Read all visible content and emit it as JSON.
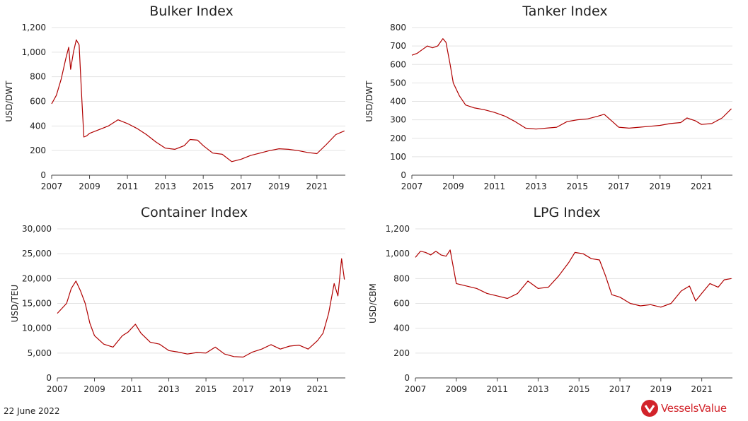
{
  "footer": {
    "date": "22 June 2022"
  },
  "brand": {
    "name": "VesselsValue",
    "color": "#d2232a"
  },
  "line_color": "#b00000",
  "chart_data": [
    {
      "type": "line",
      "title": "Bulker Index",
      "ylabel": "USD/DWT",
      "ylim": [
        0,
        1200
      ],
      "yticks": [
        0,
        200,
        400,
        600,
        800,
        1000,
        1200
      ],
      "ytick_labels": [
        "0",
        "200",
        "400",
        "600",
        "800",
        "1,000",
        "1,200"
      ],
      "xlim": [
        2007,
        2022.5
      ],
      "xticks": [
        2007,
        2009,
        2011,
        2013,
        2015,
        2017,
        2019,
        2021
      ],
      "xtick_labels": [
        "2007",
        "2009",
        "2011",
        "2013",
        "2015",
        "2017",
        "2019",
        "2021"
      ],
      "grid": true,
      "series": [
        {
          "x": [
            2007.0,
            2007.25,
            2007.5,
            2007.75,
            2007.9,
            2008.0,
            2008.15,
            2008.3,
            2008.45,
            2008.6,
            2008.7,
            2008.85,
            2009.0,
            2009.5,
            2010.0,
            2010.5,
            2011.0,
            2011.5,
            2012.0,
            2012.5,
            2013.0,
            2013.5,
            2014.0,
            2014.3,
            2014.7,
            2015.0,
            2015.5,
            2016.0,
            2016.5,
            2017.0,
            2017.5,
            2018.0,
            2018.5,
            2019.0,
            2019.5,
            2020.0,
            2020.5,
            2021.0,
            2021.5,
            2022.0,
            2022.45
          ],
          "y": [
            580,
            650,
            780,
            950,
            1040,
            860,
            1000,
            1100,
            1060,
            600,
            310,
            320,
            340,
            370,
            400,
            450,
            420,
            380,
            330,
            270,
            220,
            210,
            240,
            290,
            285,
            240,
            180,
            170,
            110,
            130,
            160,
            180,
            200,
            215,
            210,
            200,
            185,
            175,
            250,
            330,
            360
          ]
        }
      ]
    },
    {
      "type": "line",
      "title": "Tanker Index",
      "ylabel": "USD/DWT",
      "ylim": [
        0,
        800
      ],
      "yticks": [
        0,
        100,
        200,
        300,
        400,
        500,
        600,
        700,
        800
      ],
      "ytick_labels": [
        "0",
        "100",
        "200",
        "300",
        "400",
        "500",
        "600",
        "700",
        "800"
      ],
      "xlim": [
        2007,
        2022.5
      ],
      "xticks": [
        2007,
        2009,
        2011,
        2013,
        2015,
        2017,
        2019,
        2021
      ],
      "xtick_labels": [
        "2007",
        "2009",
        "2011",
        "2013",
        "2015",
        "2017",
        "2019",
        "2021"
      ],
      "grid": true,
      "series": [
        {
          "x": [
            2007.0,
            2007.25,
            2007.5,
            2007.75,
            2008.0,
            2008.25,
            2008.5,
            2008.65,
            2008.85,
            2009.0,
            2009.3,
            2009.6,
            2010.0,
            2010.5,
            2011.0,
            2011.5,
            2012.0,
            2012.5,
            2013.0,
            2013.5,
            2014.0,
            2014.5,
            2015.0,
            2015.5,
            2016.0,
            2016.3,
            2016.7,
            2017.0,
            2017.5,
            2018.0,
            2018.5,
            2019.0,
            2019.5,
            2020.0,
            2020.3,
            2020.7,
            2021.0,
            2021.5,
            2022.0,
            2022.45
          ],
          "y": [
            650,
            660,
            680,
            700,
            690,
            700,
            740,
            720,
            600,
            500,
            430,
            380,
            365,
            355,
            340,
            320,
            290,
            255,
            250,
            255,
            260,
            290,
            300,
            305,
            320,
            330,
            290,
            260,
            255,
            260,
            265,
            270,
            280,
            285,
            310,
            295,
            275,
            280,
            310,
            360
          ]
        }
      ]
    },
    {
      "type": "line",
      "title": "Container Index",
      "ylabel": "USD/TEU",
      "ylim": [
        0,
        30000
      ],
      "yticks": [
        0,
        5000,
        10000,
        15000,
        20000,
        25000,
        30000
      ],
      "ytick_labels": [
        "0",
        "5,000",
        "10,000",
        "15,000",
        "20,000",
        "25,000",
        "30,000"
      ],
      "xlim": [
        2007,
        2022.5
      ],
      "xticks": [
        2007,
        2009,
        2011,
        2013,
        2015,
        2017,
        2019,
        2021
      ],
      "xtick_labels": [
        "2007",
        "2009",
        "2011",
        "2013",
        "2015",
        "2017",
        "2019",
        "2021"
      ],
      "grid": true,
      "series": [
        {
          "x": [
            2007.0,
            2007.25,
            2007.5,
            2007.75,
            2008.0,
            2008.25,
            2008.5,
            2008.75,
            2009.0,
            2009.5,
            2010.0,
            2010.5,
            2010.8,
            2011.2,
            2011.5,
            2012.0,
            2012.5,
            2013.0,
            2013.5,
            2014.0,
            2014.5,
            2015.0,
            2015.5,
            2016.0,
            2016.5,
            2017.0,
            2017.5,
            2018.0,
            2018.5,
            2019.0,
            2019.5,
            2020.0,
            2020.5,
            2021.0,
            2021.3,
            2021.6,
            2021.9,
            2022.1,
            2022.3,
            2022.45
          ],
          "y": [
            13000,
            14000,
            15000,
            18000,
            19500,
            17500,
            15000,
            11000,
            8500,
            6800,
            6200,
            8500,
            9200,
            10800,
            9000,
            7200,
            6800,
            5500,
            5200,
            4800,
            5100,
            5000,
            6200,
            4800,
            4300,
            4200,
            5200,
            5800,
            6700,
            5800,
            6400,
            6600,
            5800,
            7500,
            9000,
            13000,
            19000,
            16500,
            24000,
            19800
          ]
        }
      ]
    },
    {
      "type": "line",
      "title": "LPG Index",
      "ylabel": "USD/CBM",
      "ylim": [
        0,
        1200
      ],
      "yticks": [
        0,
        200,
        400,
        600,
        800,
        1000,
        1200
      ],
      "ytick_labels": [
        "0",
        "200",
        "400",
        "600",
        "800",
        "1,000",
        "1,200"
      ],
      "xlim": [
        2007,
        2022.5
      ],
      "xticks": [
        2007,
        2009,
        2011,
        2013,
        2015,
        2017,
        2019,
        2021
      ],
      "xtick_labels": [
        "2007",
        "2009",
        "2011",
        "2013",
        "2015",
        "2017",
        "2019",
        "2021"
      ],
      "grid": true,
      "series": [
        {
          "x": [
            2007.0,
            2007.25,
            2007.5,
            2007.75,
            2008.0,
            2008.25,
            2008.5,
            2008.7,
            2008.9,
            2009.0,
            2009.5,
            2010.0,
            2010.5,
            2011.0,
            2011.5,
            2012.0,
            2012.5,
            2013.0,
            2013.5,
            2014.0,
            2014.5,
            2014.8,
            2015.2,
            2015.6,
            2016.0,
            2016.3,
            2016.6,
            2017.0,
            2017.5,
            2018.0,
            2018.5,
            2019.0,
            2019.5,
            2020.0,
            2020.4,
            2020.7,
            2021.0,
            2021.4,
            2021.8,
            2022.1,
            2022.45
          ],
          "y": [
            970,
            1020,
            1010,
            990,
            1020,
            990,
            980,
            1030,
            850,
            760,
            740,
            720,
            680,
            660,
            640,
            680,
            780,
            720,
            730,
            820,
            930,
            1010,
            1000,
            960,
            950,
            820,
            670,
            650,
            600,
            580,
            590,
            570,
            600,
            700,
            740,
            620,
            680,
            760,
            730,
            790,
            800
          ]
        }
      ]
    }
  ]
}
